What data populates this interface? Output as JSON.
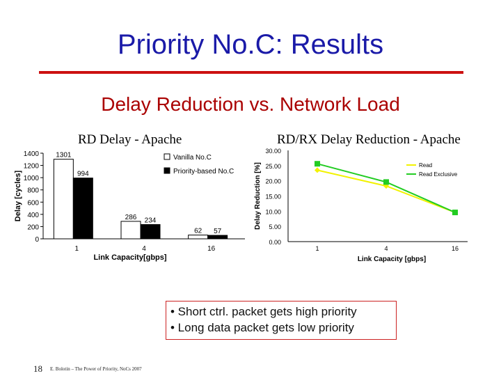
{
  "slide": {
    "title": "Priority No.C: Results",
    "subtitle": "Delay Reduction vs. Network Load",
    "bullets": [
      "• Short ctrl. packet gets high priority",
      "• Long data packet gets low priority"
    ],
    "slide_number": "18",
    "footer": "E. Bolotin – The Power of Priority, NoCs 2007",
    "title_color": "#1a1aa8",
    "subtitle_color": "#aa0000",
    "rule_color": "#cc1111"
  },
  "chart_data": [
    {
      "type": "bar",
      "title": "RD Delay - Apache",
      "xlabel": "Link Capacity[gbps]",
      "ylabel": "Delay [cycles]",
      "ylim": [
        0,
        1400
      ],
      "yticks": [
        0,
        200,
        400,
        600,
        800,
        1000,
        1200,
        1400
      ],
      "categories": [
        "1",
        "4",
        "16"
      ],
      "series": [
        {
          "name": "Vanilla No.C",
          "values": [
            1301,
            286,
            62
          ],
          "color": "#ffffff"
        },
        {
          "name": "Priority-based No.C",
          "values": [
            994,
            234,
            57
          ],
          "color": "#000000"
        }
      ],
      "legend": "top-right",
      "grid": false
    },
    {
      "type": "line",
      "title": "RD/RX Delay Reduction - Apache",
      "xlabel": "Link Capacity [gbps]",
      "ylabel": "Delay Reduction [%]",
      "ylim": [
        0,
        30
      ],
      "yticks": [
        "0.00",
        "5.00",
        "10.00",
        "15.00",
        "20.00",
        "25.00",
        "30.00"
      ],
      "categories": [
        "1",
        "4",
        "16"
      ],
      "series": [
        {
          "name": "Read",
          "values": [
            23.5,
            18.3,
            9.6
          ],
          "color": "#f2f200"
        },
        {
          "name": "Read Exclusive",
          "values": [
            25.6,
            19.6,
            9.6
          ],
          "color": "#22cc22"
        }
      ],
      "legend": "top-right",
      "grid": false
    }
  ]
}
